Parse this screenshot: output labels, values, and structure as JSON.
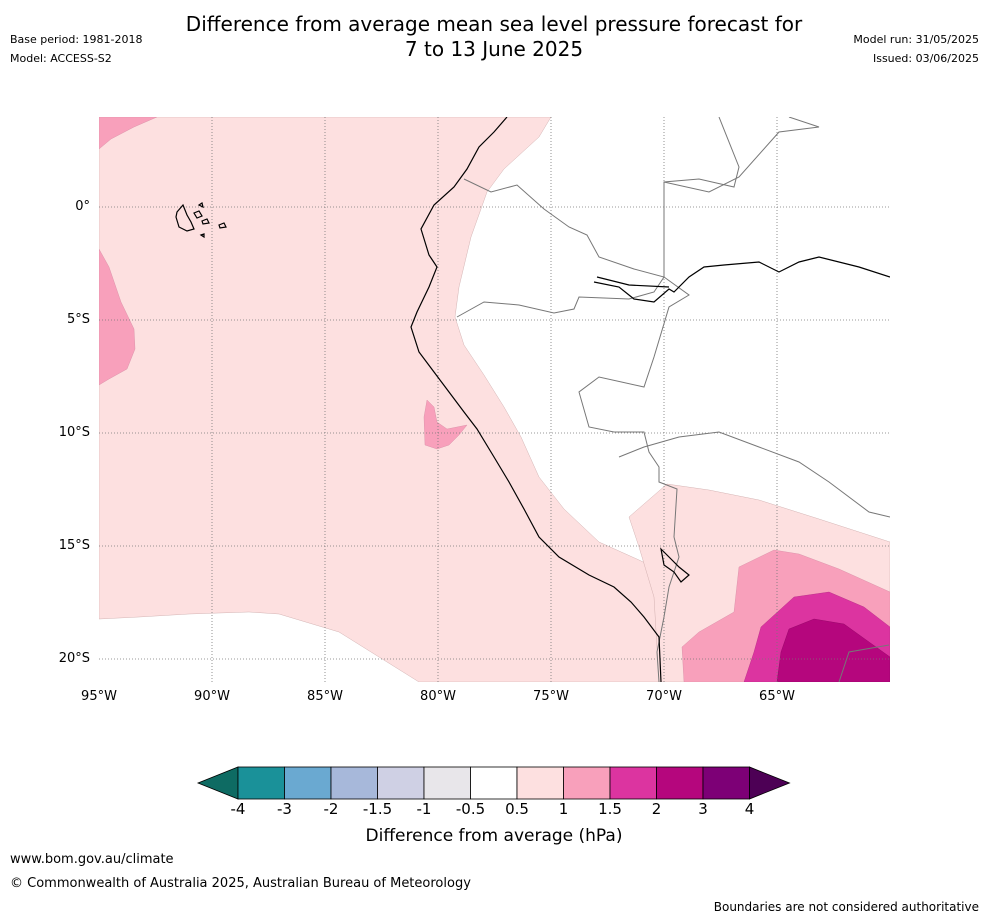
{
  "header": {
    "title_line1": "Difference from average mean sea level pressure forecast for",
    "title_line2": "7 to 13 June 2025",
    "base_period": "Base period: 1981-2018",
    "model": "Model: ACCESS-S2",
    "model_run": "Model run: 31/05/2025",
    "issued": "Issued: 03/06/2025"
  },
  "map": {
    "lat_ticks": [
      "0°",
      "5°S",
      "10°S",
      "15°S",
      "20°S"
    ],
    "lon_ticks": [
      "95°W",
      "90°W",
      "85°W",
      "80°W",
      "75°W",
      "70°W",
      "65°W"
    ],
    "extent": {
      "lon_min": -95,
      "lon_max": -60,
      "lat_min": -21,
      "lat_max": 4
    }
  },
  "colorbar": {
    "title": "Difference from average (hPa)",
    "ticks": [
      "-4",
      "-3",
      "-2",
      "-1.5",
      "-1",
      "-0.5",
      "0.5",
      "1",
      "1.5",
      "2",
      "3",
      "4"
    ],
    "colors": [
      "#0e6b63",
      "#1a9199",
      "#6aa9d1",
      "#a7b8da",
      "#cfd0e4",
      "#e8e6ea",
      "#ffffff",
      "#fde0e0",
      "#f8a0bb",
      "#dc34a0",
      "#b5067d",
      "#7d0076",
      "#4d0055"
    ]
  },
  "footer": {
    "url": "www.bom.gov.au/climate",
    "copyright": "© Commonwealth of Australia 2025, Australian Bureau of Meteorology",
    "disclaimer": "Boundaries are not considered authoritative"
  }
}
